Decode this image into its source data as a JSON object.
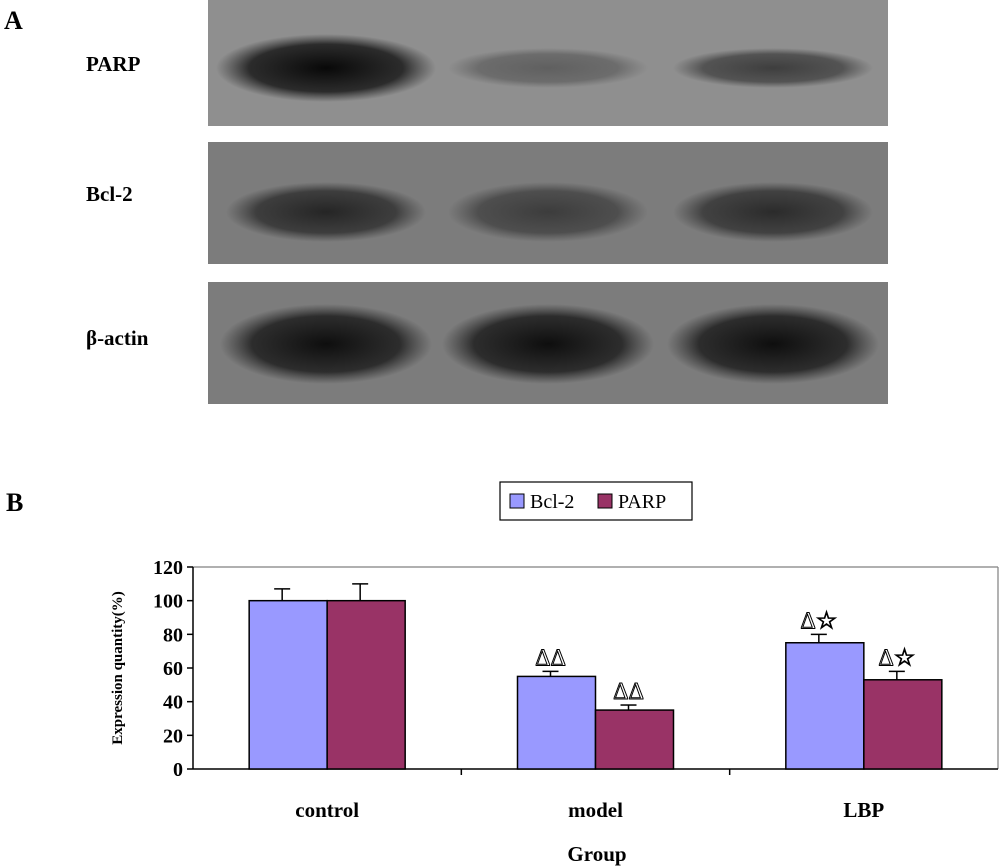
{
  "panels": {
    "a_label": "A",
    "b_label": "B"
  },
  "blot": {
    "rows": [
      {
        "label": "PARP",
        "bands": [
          1.0,
          0.35,
          0.6
        ]
      },
      {
        "label": "Bcl-2",
        "bands": [
          0.75,
          0.55,
          0.7
        ]
      },
      {
        "label": "β-actin",
        "bands": [
          0.95,
          0.95,
          0.95
        ]
      }
    ]
  },
  "chart_data": {
    "type": "bar",
    "categories": [
      "control",
      "model",
      "LBP"
    ],
    "series": [
      {
        "name": "Bcl-2",
        "values": [
          100,
          55,
          75
        ],
        "errors": [
          7,
          3,
          5
        ],
        "annotations": [
          "",
          "ΔΔ",
          "Δ☆"
        ]
      },
      {
        "name": "PARP",
        "values": [
          100,
          35,
          53
        ],
        "errors": [
          10,
          3,
          5
        ],
        "annotations": [
          "",
          "ΔΔ",
          "Δ☆"
        ]
      }
    ],
    "xlabel": "Group",
    "ylabel": "Expression quantity(%)",
    "ylim": [
      0,
      120
    ],
    "yticks": [
      0,
      20,
      40,
      60,
      80,
      100,
      120
    ],
    "legend_position": "top-center",
    "colors": {
      "Bcl-2": "#9999ff",
      "PARP": "#993366"
    }
  }
}
